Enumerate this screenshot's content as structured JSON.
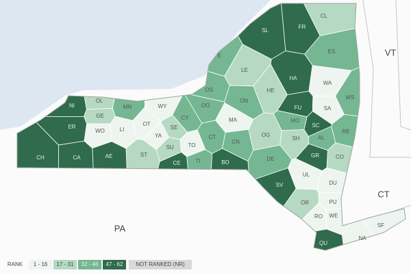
{
  "map": {
    "regions": [
      {
        "label": "CL",
        "tier": 1
      },
      {
        "label": "SL",
        "tier": 3
      },
      {
        "label": "FR",
        "tier": 3
      },
      {
        "label": "ES",
        "tier": 2
      },
      {
        "label": "E",
        "tier": 2
      },
      {
        "label": "LE",
        "tier": 1
      },
      {
        "label": "HA",
        "tier": 3
      },
      {
        "label": "WA",
        "tier": 0
      },
      {
        "label": "HE",
        "tier": 1
      },
      {
        "label": "OS",
        "tier": 2
      },
      {
        "label": "ON",
        "tier": 2
      },
      {
        "label": "WS",
        "tier": 2
      },
      {
        "label": "NI",
        "tier": 3
      },
      {
        "label": "OL",
        "tier": 1
      },
      {
        "label": "MN",
        "tier": 2
      },
      {
        "label": "WY",
        "tier": 0
      },
      {
        "label": "OO",
        "tier": 2
      },
      {
        "label": "FU",
        "tier": 3
      },
      {
        "label": "SA",
        "tier": 0
      },
      {
        "label": "GE",
        "tier": 1
      },
      {
        "label": "CY",
        "tier": 2
      },
      {
        "label": "MA",
        "tier": 0
      },
      {
        "label": "MO",
        "tier": 2
      },
      {
        "label": "SC",
        "tier": 3
      },
      {
        "label": "ER",
        "tier": 3
      },
      {
        "label": "WO",
        "tier": 0
      },
      {
        "label": "LI",
        "tier": 0
      },
      {
        "label": "OT",
        "tier": 0
      },
      {
        "label": "SE",
        "tier": 1
      },
      {
        "label": "RE",
        "tier": 2
      },
      {
        "label": "OG",
        "tier": 1
      },
      {
        "label": "SH",
        "tier": 1
      },
      {
        "label": "AL",
        "tier": 2
      },
      {
        "label": "YA",
        "tier": 0
      },
      {
        "label": "CT",
        "tier": 2
      },
      {
        "label": "CN",
        "tier": 2
      },
      {
        "label": "CH",
        "tier": 3
      },
      {
        "label": "CA",
        "tier": 3
      },
      {
        "label": "AE",
        "tier": 3
      },
      {
        "label": "ST",
        "tier": 1
      },
      {
        "label": "SU",
        "tier": 1
      },
      {
        "label": "TO",
        "tier": 0
      },
      {
        "label": "DE",
        "tier": 2
      },
      {
        "label": "GR",
        "tier": 3
      },
      {
        "label": "CO",
        "tier": 1
      },
      {
        "label": "CE",
        "tier": 3
      },
      {
        "label": "TI",
        "tier": 2
      },
      {
        "label": "BO",
        "tier": 3
      },
      {
        "label": "SV",
        "tier": 3
      },
      {
        "label": "UL",
        "tier": 0
      },
      {
        "label": "DU",
        "tier": 0
      },
      {
        "label": "OR",
        "tier": 1
      },
      {
        "label": "PU",
        "tier": 0
      },
      {
        "label": "RO",
        "tier": 0
      },
      {
        "label": "WE",
        "tier": 0
      },
      {
        "label": "NA",
        "tier": 0
      },
      {
        "label": "SF",
        "tier": 0
      },
      {
        "label": "QU",
        "tier": 3
      }
    ],
    "state_labels": [
      "VT",
      "CT",
      "PA"
    ]
  },
  "legend": {
    "title": "RANK",
    "tiers": [
      {
        "label": "1 - 16",
        "color": "#eef5f0"
      },
      {
        "label": "17 - 31",
        "color": "#b5d9c2"
      },
      {
        "label": "32 - 46",
        "color": "#74b792"
      },
      {
        "label": "47 - 62",
        "color": "#2f6b4c"
      }
    ],
    "not_ranked": {
      "label": "NOT RANKED (NR)",
      "color": "#d9d9d9"
    }
  }
}
